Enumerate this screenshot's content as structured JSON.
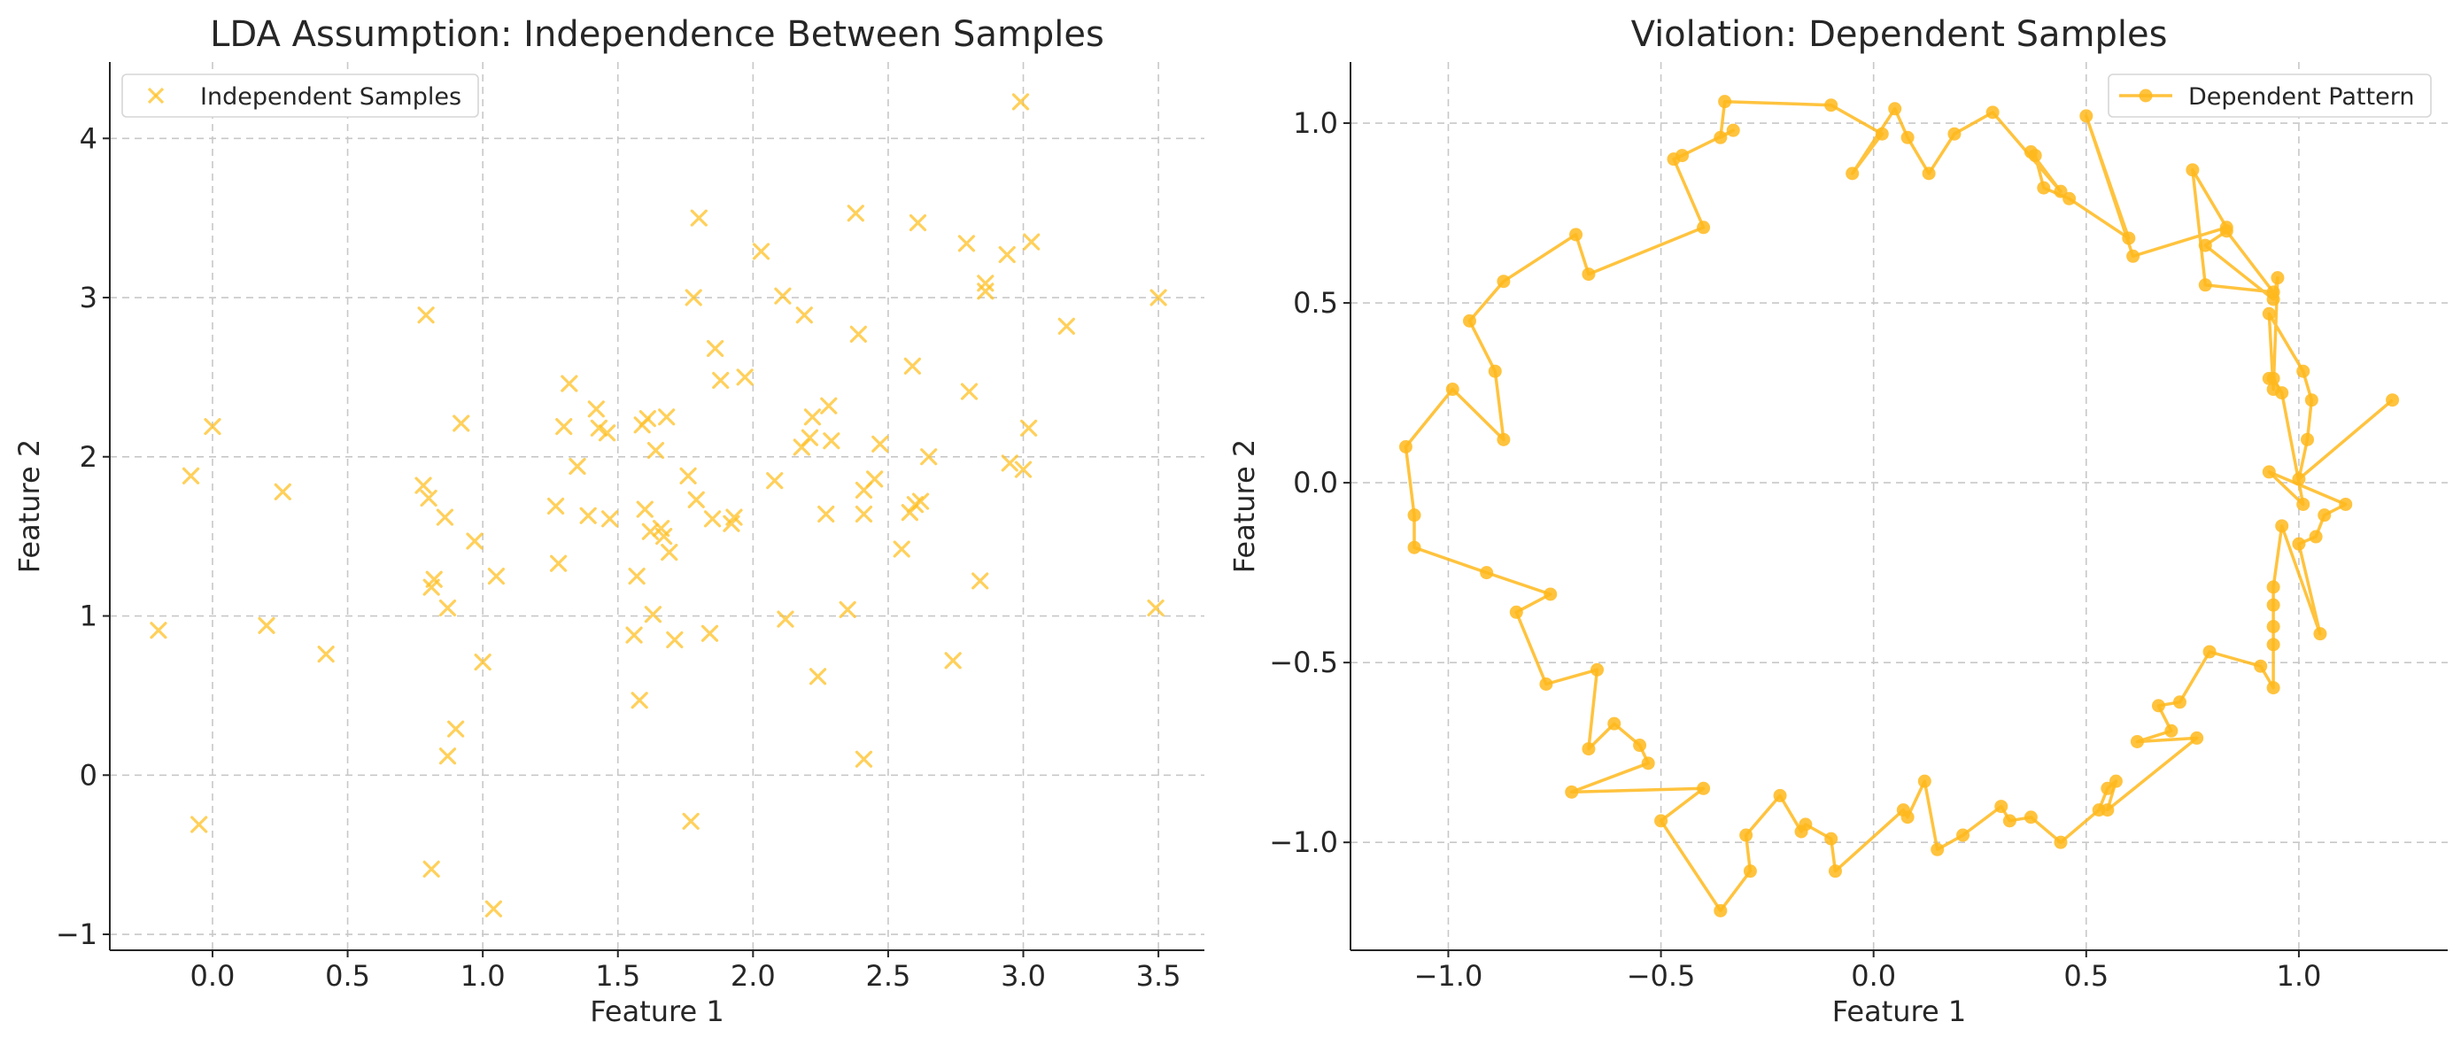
{
  "chart_data": [
    {
      "type": "scatter",
      "title": "LDA Assumption: Independence Between Samples",
      "xlabel": "Feature 1",
      "ylabel": "Feature 2",
      "xlim": [
        -0.38,
        3.67
      ],
      "ylim": [
        -1.1,
        4.48
      ],
      "xticks": [
        0.0,
        0.5,
        1.0,
        1.5,
        2.0,
        2.5,
        3.0,
        3.5
      ],
      "xtick_labels": [
        "0.0",
        "0.5",
        "1.0",
        "1.5",
        "2.0",
        "2.5",
        "3.0",
        "3.5"
      ],
      "yticks": [
        -1,
        0,
        1,
        2,
        3,
        4
      ],
      "ytick_labels": [
        "−1",
        "0",
        "1",
        "2",
        "3",
        "4"
      ],
      "grid": true,
      "legend_position": "upper-left",
      "marker": "x",
      "color": "#FFC125",
      "series": [
        {
          "name": "Independent Samples",
          "x": [
            -0.2,
            -0.08,
            -0.05,
            0.0,
            0.2,
            0.26,
            0.42,
            0.78,
            0.79,
            0.8,
            0.81,
            0.81,
            0.82,
            0.86,
            0.87,
            0.87,
            0.9,
            0.92,
            0.97,
            1.0,
            1.04,
            1.05,
            1.27,
            1.28,
            1.3,
            1.32,
            1.35,
            1.39,
            1.42,
            1.43,
            1.46,
            1.47,
            1.56,
            1.57,
            1.58,
            1.59,
            1.6,
            1.61,
            1.62,
            1.63,
            1.64,
            1.66,
            1.67,
            1.68,
            1.69,
            1.71,
            1.76,
            1.77,
            1.78,
            1.79,
            1.8,
            1.84,
            1.85,
            1.86,
            1.88,
            1.92,
            1.93,
            1.97,
            2.03,
            2.08,
            2.11,
            2.12,
            2.18,
            2.19,
            2.21,
            2.22,
            2.24,
            2.27,
            2.28,
            2.29,
            2.35,
            2.38,
            2.39,
            2.41,
            2.41,
            2.41,
            2.45,
            2.47,
            2.55,
            2.58,
            2.59,
            2.6,
            2.61,
            2.62,
            2.65,
            2.74,
            2.79,
            2.8,
            2.84,
            2.86,
            2.86,
            2.94,
            2.95,
            2.99,
            3.0,
            3.02,
            3.03,
            3.16,
            3.49,
            3.5
          ],
          "y": [
            0.91,
            1.88,
            -0.31,
            2.19,
            0.94,
            1.78,
            0.76,
            1.82,
            2.89,
            1.74,
            -0.59,
            1.18,
            1.23,
            1.62,
            1.05,
            0.12,
            0.29,
            2.21,
            1.47,
            0.71,
            -0.84,
            1.25,
            1.69,
            1.33,
            2.19,
            2.46,
            1.94,
            1.63,
            2.3,
            2.18,
            2.15,
            1.61,
            0.88,
            1.25,
            0.47,
            2.2,
            1.67,
            2.24,
            1.53,
            1.01,
            2.04,
            1.55,
            1.5,
            2.25,
            1.4,
            0.85,
            1.88,
            -0.29,
            3.0,
            1.73,
            3.5,
            0.89,
            1.61,
            2.68,
            2.48,
            1.58,
            1.62,
            2.5,
            3.29,
            1.85,
            3.01,
            0.98,
            2.06,
            2.89,
            2.12,
            2.25,
            0.62,
            1.64,
            2.32,
            2.1,
            1.04,
            3.53,
            2.77,
            1.79,
            1.64,
            0.1,
            1.86,
            2.08,
            1.42,
            1.65,
            2.57,
            1.7,
            3.47,
            1.72,
            2.0,
            0.72,
            3.34,
            2.41,
            1.22,
            3.09,
            3.04,
            3.27,
            1.96,
            4.23,
            1.92,
            2.18,
            3.35,
            2.82,
            1.05,
            3.0
          ]
        }
      ]
    },
    {
      "type": "line",
      "title": "Violation: Dependent Samples",
      "xlabel": "Feature 1",
      "ylabel": "Feature 2",
      "xlim": [
        -1.23,
        1.35
      ],
      "ylim": [
        -1.3,
        1.17
      ],
      "xticks": [
        -1.0,
        -0.5,
        0.0,
        0.5,
        1.0
      ],
      "xtick_labels": [
        "−1.0",
        "−0.5",
        "0.0",
        "0.5",
        "1.0"
      ],
      "yticks": [
        -1.0,
        -0.5,
        0.0,
        0.5,
        1.0
      ],
      "ytick_labels": [
        "−1.0",
        "−0.5",
        "0.0",
        "0.5",
        "1.0"
      ],
      "grid": true,
      "legend_position": "upper-right",
      "marker": "o",
      "color": "#FFB81C",
      "series": [
        {
          "name": "Dependent Pattern",
          "x": [
            1.22,
            1.0,
            1.02,
            1.03,
            1.01,
            0.93,
            0.94,
            0.95,
            0.94,
            0.78,
            0.83,
            0.94,
            0.78,
            0.75,
            0.83,
            0.61,
            0.5,
            0.6,
            0.46,
            0.4,
            0.38,
            0.37,
            0.44,
            0.28,
            0.19,
            0.13,
            0.08,
            0.05,
            -0.05,
            0.02,
            -0.1,
            -0.35,
            -0.36,
            -0.33,
            -0.45,
            -0.47,
            -0.4,
            -0.67,
            -0.7,
            -0.87,
            -0.95,
            -0.89,
            -0.87,
            -0.99,
            -1.1,
            -1.08,
            -1.08,
            -0.91,
            -0.76,
            -0.84,
            -0.77,
            -0.65,
            -0.67,
            -0.61,
            -0.55,
            -0.53,
            -0.71,
            -0.4,
            -0.5,
            -0.36,
            -0.29,
            -0.3,
            -0.22,
            -0.17,
            -0.16,
            -0.1,
            -0.09,
            0.07,
            0.08,
            0.12,
            0.15,
            0.21,
            0.3,
            0.32,
            0.37,
            0.44,
            0.53,
            0.55,
            0.57,
            0.55,
            0.76,
            0.62,
            0.7,
            0.67,
            0.72,
            0.79,
            0.91,
            0.94,
            0.94,
            0.94,
            0.94,
            0.94,
            0.96,
            1.05,
            1.0,
            1.04,
            1.06,
            1.11,
            0.93,
            1.01,
            0.96,
            0.94,
            0.93
          ],
          "y": [
            0.23,
            0.01,
            0.12,
            0.23,
            0.31,
            0.47,
            0.26,
            0.57,
            0.51,
            0.66,
            0.7,
            0.53,
            0.55,
            0.87,
            0.71,
            0.63,
            1.02,
            0.68,
            0.79,
            0.82,
            0.91,
            0.92,
            0.81,
            1.03,
            0.97,
            0.86,
            0.96,
            1.04,
            0.86,
            0.97,
            1.05,
            1.06,
            0.96,
            0.98,
            0.91,
            0.9,
            0.71,
            0.58,
            0.69,
            0.56,
            0.45,
            0.31,
            0.12,
            0.26,
            0.1,
            -0.09,
            -0.18,
            -0.25,
            -0.31,
            -0.36,
            -0.56,
            -0.52,
            -0.74,
            -0.67,
            -0.73,
            -0.78,
            -0.86,
            -0.85,
            -0.94,
            -1.19,
            -1.08,
            -0.98,
            -0.87,
            -0.97,
            -0.95,
            -0.99,
            -1.08,
            -0.91,
            -0.93,
            -0.83,
            -1.02,
            -0.98,
            -0.9,
            -0.94,
            -0.93,
            -1.0,
            -0.91,
            -0.85,
            -0.83,
            -0.91,
            -0.71,
            -0.72,
            -0.69,
            -0.62,
            -0.61,
            -0.47,
            -0.51,
            -0.57,
            -0.45,
            -0.4,
            -0.34,
            -0.29,
            -0.12,
            -0.42,
            -0.17,
            -0.15,
            -0.09,
            -0.06,
            0.03,
            -0.06,
            0.25,
            0.29,
            0.29
          ]
        }
      ]
    }
  ]
}
